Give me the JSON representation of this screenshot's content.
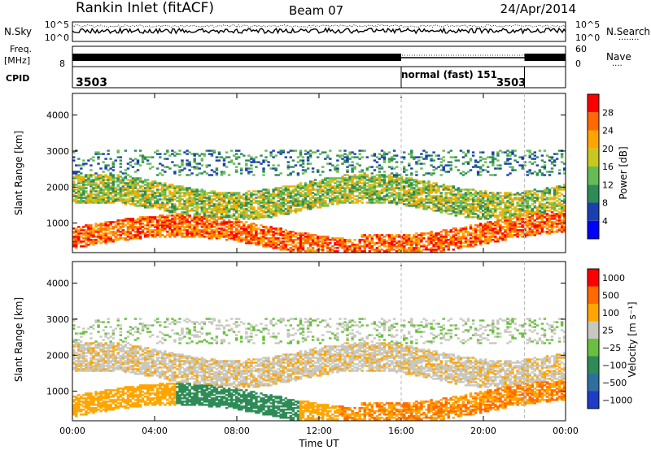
{
  "header": {
    "station": "Rankin Inlet (fitACF)",
    "beam": "Beam 07",
    "date": "24/Apr/2014"
  },
  "noise_panel": {
    "left_label": "N.Sky",
    "right_label": "N.Search",
    "ticks": [
      "10^5",
      "10^0"
    ]
  },
  "freq_panel": {
    "left_label_1": "Freq.",
    "left_label_2": "[MHz]",
    "left_ticks": [
      "8"
    ],
    "right_label": "Nave",
    "right_ticks": [
      "60",
      "0"
    ]
  },
  "cpid_panel": {
    "label": "CPID",
    "segments": [
      "3503",
      "normal (fast) 151",
      "3503"
    ],
    "change_times_hours": [
      16.0,
      22.0
    ]
  },
  "colors": {
    "power": [
      "#0000ff",
      "#1a40b0",
      "#2e8b57",
      "#66bb55",
      "#c8c820",
      "#ffa500",
      "#ff6a00",
      "#ff0000"
    ],
    "velocity": [
      "#1e3cc8",
      "#2e6f9e",
      "#2e8b57",
      "#6abf3f",
      "#c8c8c0",
      "#ffa500",
      "#ff6a00",
      "#ff0000"
    ],
    "ground_scatter": "#c8c8c0"
  },
  "chart_data": [
    {
      "type": "heatmap",
      "name": "power",
      "xlabel": "Time UT",
      "ylabel": "Slant Range [km]",
      "xlim": [
        0,
        24
      ],
      "ylim": [
        180,
        4600
      ],
      "xticks": [
        "00:00",
        "04:00",
        "08:00",
        "12:00",
        "16:00",
        "20:00",
        "00:00"
      ],
      "yticks": [
        1000,
        2000,
        3000,
        4000
      ],
      "colorbar_label": "Power [dB]",
      "colorbar_ticks": [
        4,
        8,
        12,
        16,
        20,
        24,
        28
      ],
      "colorbar_range": [
        0,
        32
      ]
    },
    {
      "type": "heatmap",
      "name": "velocity",
      "xlabel": "Time UT",
      "ylabel": "Slant Range [km]",
      "xlim": [
        0,
        24
      ],
      "ylim": [
        180,
        4600
      ],
      "xticks": [
        "00:00",
        "04:00",
        "08:00",
        "12:00",
        "16:00",
        "20:00",
        "00:00"
      ],
      "yticks": [
        1000,
        2000,
        3000,
        4000
      ],
      "colorbar_label": "Velocity [m s⁻¹]",
      "colorbar_ticks": [
        "1000",
        "500",
        "100",
        "25",
        "−25",
        "−100",
        "−500",
        "−1000"
      ]
    }
  ]
}
